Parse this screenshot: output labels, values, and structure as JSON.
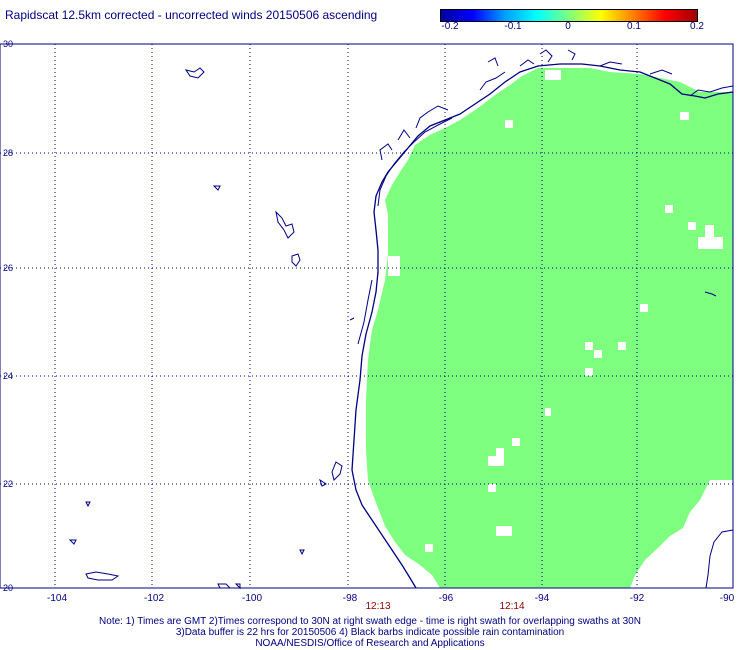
{
  "title": "Rapidscat 12.5km corrected - uncorrected winds 20150506 ascending",
  "colorbar": {
    "ticks": [
      "-0.2",
      "-0.1",
      "0",
      "0.1",
      "0.2"
    ],
    "colors": [
      "#0000a0",
      "#0000ff",
      "#00a0ff",
      "#00ffff",
      "#7fff7f",
      "#ffff00",
      "#ff8000",
      "#ff0000",
      "#a00000"
    ]
  },
  "map": {
    "lat_labels": [
      "30",
      "28",
      "26",
      "24",
      "22",
      "20"
    ],
    "lon_labels": [
      "-104",
      "-102",
      "-100",
      "-98",
      "-96",
      "-94",
      "-92",
      "-90"
    ],
    "lat_range": [
      20,
      30
    ],
    "lon_range": [
      -105,
      -90
    ],
    "swath_color": "#7fff7f",
    "coast_color": "#000080",
    "grid": true
  },
  "times": [
    "12:13",
    "12:14"
  ],
  "notes": [
    "Note: 1) Times are GMT 2)Times correspond to 30N at right swath edge - time is right swath for overlapping swaths at 30N",
    "3)Data buffer is 22 hrs for 20150506 4) Black barbs indicate possible rain contamination",
    "NOAA/NESDIS/Office of Research and Applications"
  ]
}
